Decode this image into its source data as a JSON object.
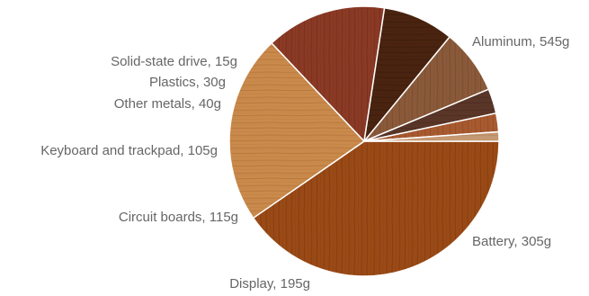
{
  "chart_data": {
    "type": "pie",
    "unit": "g",
    "start_angle_deg": 0,
    "direction": "clockwise",
    "slices": [
      {
        "label": "Aluminum, 545g",
        "name": "Aluminum",
        "value": 545,
        "color": "#9a4a16",
        "grain": "#6b2c07"
      },
      {
        "label": "Battery, 305g",
        "name": "Battery",
        "value": 305,
        "color": "#c98a4c",
        "grain": "#9f5e26"
      },
      {
        "label": "Display, 195g",
        "name": "Display",
        "value": 195,
        "color": "#8a3a25",
        "grain": "#5f2010"
      },
      {
        "label": "Circuit boards, 115g",
        "name": "Circuit boards",
        "value": 115,
        "color": "#4a2410",
        "grain": "#2c1206"
      },
      {
        "label": "Keyboard and trackpad, 105g",
        "name": "Keyboard and trackpad",
        "value": 105,
        "color": "#8b5a3a",
        "grain": "#5e3620"
      },
      {
        "label": "Other metals, 40g",
        "name": "Other metals",
        "value": 40,
        "color": "#5a3628",
        "grain": "#3c2018"
      },
      {
        "label": "Plastics, 30g",
        "name": "Plastics",
        "value": 30,
        "color": "#a85a30",
        "grain": "#7a3a18"
      },
      {
        "label": "Solid-state drive, 15g",
        "name": "Solid-state drive",
        "value": 15,
        "color": "#c69a74",
        "grain": "#9a6c48"
      }
    ]
  }
}
